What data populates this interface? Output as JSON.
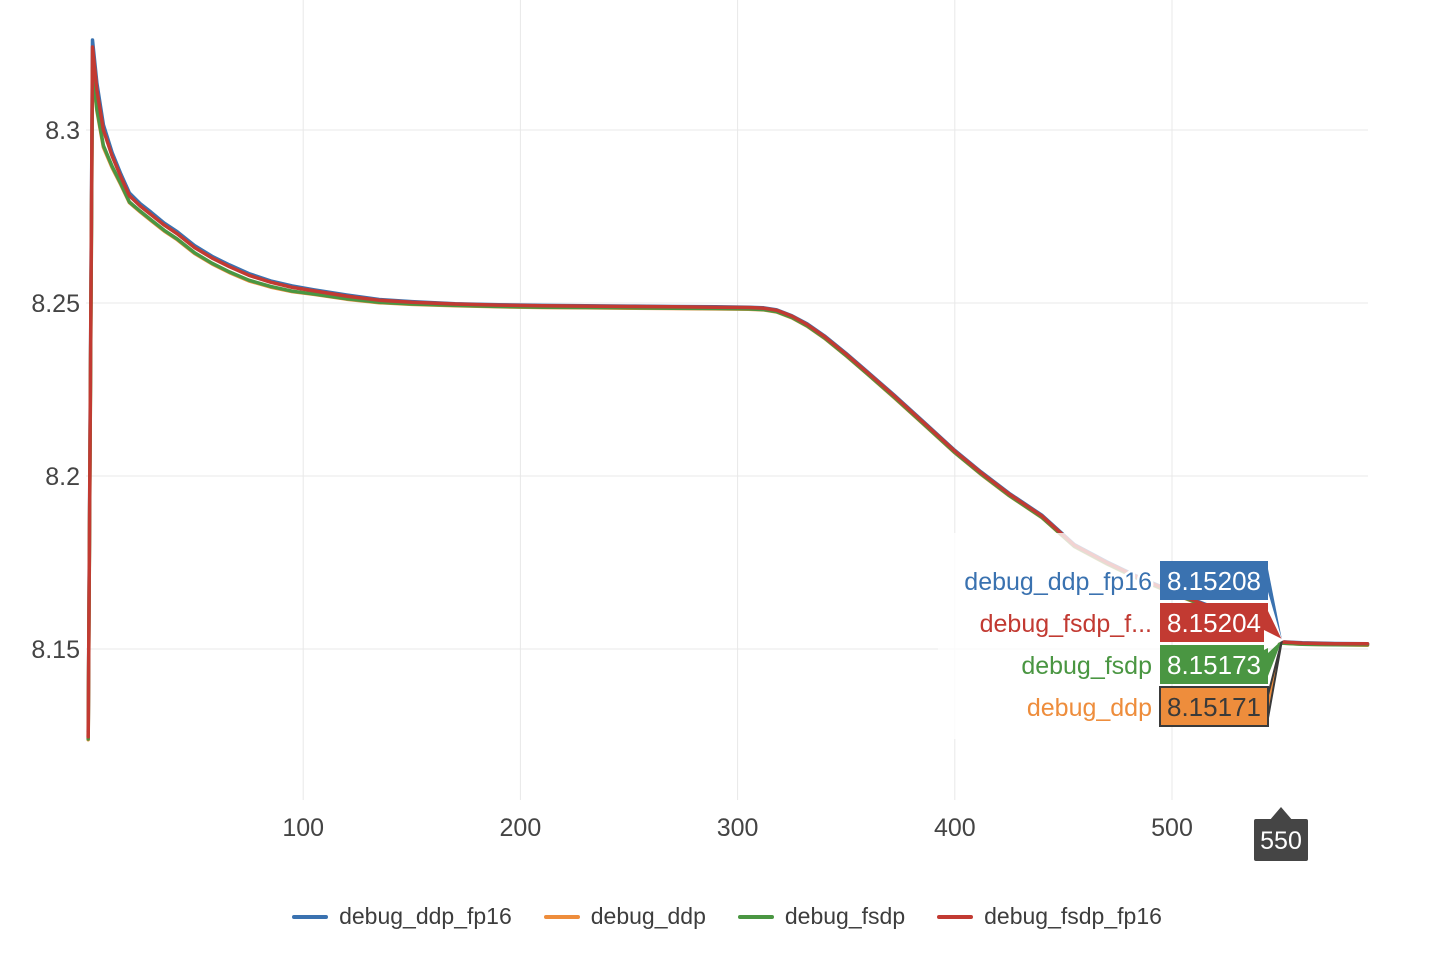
{
  "chart_data": {
    "type": "line",
    "title": "",
    "xlabel": "",
    "ylabel": "",
    "grid": true,
    "legend_position": "bottom",
    "x_range": [
      0,
      590
    ],
    "y_range": [
      8.108,
      8.338
    ],
    "x_ticks": [
      {
        "v": 100,
        "label": "100"
      },
      {
        "v": 200,
        "label": "200"
      },
      {
        "v": 300,
        "label": "300"
      },
      {
        "v": 400,
        "label": "400"
      },
      {
        "v": 500,
        "label": "500"
      }
    ],
    "y_ticks": [
      {
        "v": 8.3,
        "label": "8.3"
      },
      {
        "v": 8.25,
        "label": "8.25"
      },
      {
        "v": 8.2,
        "label": "8.2"
      },
      {
        "v": 8.15,
        "label": "8.15"
      }
    ],
    "steps": [
      1,
      3,
      5,
      8,
      12,
      16,
      20,
      25,
      30,
      36,
      42,
      50,
      58,
      66,
      75,
      85,
      95,
      105,
      120,
      135,
      150,
      170,
      190,
      210,
      230,
      250,
      270,
      290,
      305,
      312,
      318,
      325,
      332,
      340,
      350,
      360,
      372,
      385,
      400,
      412,
      425,
      440,
      455,
      470,
      485,
      500,
      515,
      530,
      540,
      550,
      560,
      575,
      590
    ],
    "series": [
      {
        "name": "debug_ddp_fp16",
        "color": "#3A72B0",
        "values": [
          8.126,
          8.326,
          8.3135,
          8.3015,
          8.2935,
          8.2873,
          8.2818,
          8.2787,
          8.2762,
          8.2731,
          8.2706,
          8.2666,
          8.2635,
          8.261,
          8.2585,
          8.2564,
          8.2549,
          8.2538,
          8.2523,
          8.251,
          8.2504,
          8.2498,
          8.2495,
          8.2493,
          8.2492,
          8.2491,
          8.249,
          8.2489,
          8.2488,
          8.2486,
          8.248,
          8.2463,
          8.244,
          8.2405,
          8.2354,
          8.23,
          8.2234,
          8.216,
          8.2074,
          8.2012,
          8.195,
          8.1887,
          8.1802,
          8.1752,
          8.1707,
          8.1667,
          8.163,
          8.1595,
          8.1562,
          8.15208,
          8.1518,
          8.1516,
          8.1515
        ]
      },
      {
        "name": "debug_ddp",
        "color": "#EE8D3C",
        "values": [
          8.1238,
          8.317,
          8.3055,
          8.295,
          8.2891,
          8.2842,
          8.279,
          8.2763,
          8.2738,
          8.2708,
          8.2683,
          8.2643,
          8.2613,
          8.2588,
          8.2564,
          8.2546,
          8.2533,
          8.2525,
          8.2511,
          8.2501,
          8.2496,
          8.2492,
          8.2489,
          8.2487,
          8.2486,
          8.2485,
          8.2484,
          8.2483,
          8.2482,
          8.248,
          8.2474,
          8.2457,
          8.2433,
          8.2398,
          8.2347,
          8.2293,
          8.2227,
          8.2153,
          8.2067,
          8.2005,
          8.1943,
          8.188,
          8.1796,
          8.1746,
          8.1701,
          8.1661,
          8.1624,
          8.1589,
          8.1556,
          8.15171,
          8.1514,
          8.1512,
          8.1511
        ]
      },
      {
        "name": "debug_fsdp",
        "color": "#4A9642",
        "values": [
          8.124,
          8.318,
          8.306,
          8.2955,
          8.2895,
          8.2845,
          8.2792,
          8.2765,
          8.274,
          8.271,
          8.2685,
          8.2645,
          8.2615,
          8.259,
          8.2566,
          8.2548,
          8.2534,
          8.2526,
          8.2512,
          8.2502,
          8.2497,
          8.2493,
          8.249,
          8.2488,
          8.2487,
          8.2486,
          8.2485,
          8.2484,
          8.2483,
          8.2481,
          8.2475,
          8.2458,
          8.2434,
          8.2399,
          8.2348,
          8.2294,
          8.2228,
          8.2154,
          8.2068,
          8.2006,
          8.1944,
          8.1881,
          8.1797,
          8.1747,
          8.1702,
          8.1662,
          8.1625,
          8.159,
          8.1557,
          8.15173,
          8.1514,
          8.1512,
          8.1512
        ]
      },
      {
        "name": "debug_fsdp_fp16",
        "color": "#C23A32",
        "values": [
          8.1246,
          8.324,
          8.3115,
          8.3,
          8.2925,
          8.2865,
          8.281,
          8.278,
          8.2755,
          8.2725,
          8.27,
          8.266,
          8.263,
          8.2605,
          8.258,
          8.256,
          8.2545,
          8.2535,
          8.252,
          8.2508,
          8.2502,
          8.2497,
          8.2494,
          8.2492,
          8.2491,
          8.249,
          8.2489,
          8.2488,
          8.2487,
          8.2485,
          8.2479,
          8.2462,
          8.2438,
          8.2403,
          8.2352,
          8.2298,
          8.2232,
          8.2158,
          8.2072,
          8.201,
          8.1948,
          8.1885,
          8.18,
          8.175,
          8.1705,
          8.1665,
          8.1628,
          8.1593,
          8.156,
          8.15204,
          8.1517,
          8.1515,
          8.1515
        ]
      }
    ]
  },
  "hover": {
    "x_value": 550,
    "entries": [
      {
        "name": "debug_ddp_fp16",
        "display_name": "debug_ddp_fp16",
        "value": "8.15208",
        "color": "#3A72B0",
        "text_color": "#ffffff",
        "emphasized": false
      },
      {
        "name": "debug_fsdp_fp16",
        "display_name": "debug_fsdp_f...",
        "value": "8.15204",
        "color": "#C23A32",
        "text_color": "#ffffff",
        "emphasized": false
      },
      {
        "name": "debug_fsdp",
        "display_name": "debug_fsdp",
        "value": "8.15173",
        "color": "#4A9642",
        "text_color": "#ffffff",
        "emphasized": false
      },
      {
        "name": "debug_ddp",
        "display_name": "debug_ddp",
        "value": "8.15171",
        "color": "#EE8D3C",
        "text_color": "#3a3a3a",
        "emphasized": true
      }
    ]
  },
  "cursor": {
    "label": "550",
    "bg_color": "#454545",
    "text_color": "#ffffff"
  },
  "legend": {
    "items": [
      {
        "label": "debug_ddp_fp16",
        "color": "#3A72B0"
      },
      {
        "label": "debug_ddp",
        "color": "#EE8D3C"
      },
      {
        "label": "debug_fsdp",
        "color": "#4A9642"
      },
      {
        "label": "debug_fsdp_fp16",
        "color": "#C23A32"
      }
    ]
  },
  "style": {
    "grid_color": "#e8e8e8",
    "tick_color": "#444444",
    "emphasis_border": "#3a3a3a"
  }
}
